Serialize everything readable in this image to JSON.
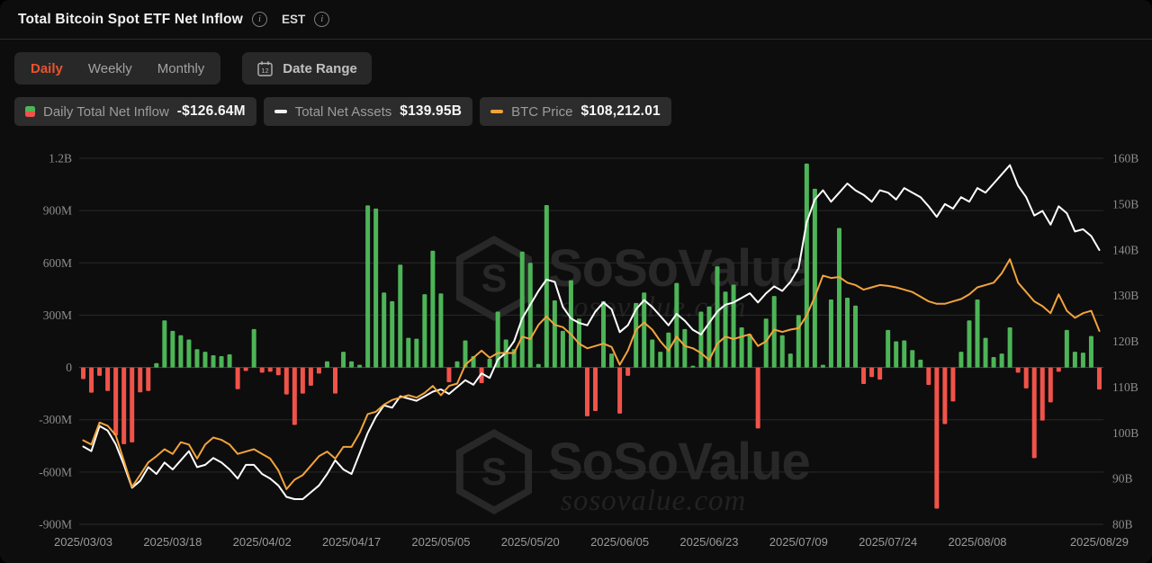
{
  "header": {
    "title": "Total Bitcoin Spot ETF Net Inflow",
    "timezone": "EST"
  },
  "controls": {
    "tabs": [
      {
        "label": "Daily",
        "active": true
      },
      {
        "label": "Weekly",
        "active": false
      },
      {
        "label": "Monthly",
        "active": false
      }
    ],
    "date_range_label": "Date Range",
    "calendar_day": "12"
  },
  "legend": [
    {
      "label": "Daily Total Net Inflow",
      "value": "-$126.64M",
      "icon": "green-red-bar-icon"
    },
    {
      "label": "Total Net Assets",
      "value": "$139.95B",
      "icon": "white-dash-icon"
    },
    {
      "label": "BTC Price",
      "value": "$108,212.01",
      "icon": "orange-dash-icon"
    }
  ],
  "watermark": {
    "brand": "SoSoValue",
    "domain": "sosovalue.com"
  },
  "chart_data": {
    "type": "mixed",
    "title": "Total Bitcoin Spot ETF Net Inflow",
    "dates": [
      "2025/03/03",
      "2025/03/04",
      "2025/03/05",
      "2025/03/06",
      "2025/03/07",
      "2025/03/10",
      "2025/03/11",
      "2025/03/12",
      "2025/03/13",
      "2025/03/14",
      "2025/03/17",
      "2025/03/18",
      "2025/03/19",
      "2025/03/20",
      "2025/03/21",
      "2025/03/24",
      "2025/03/25",
      "2025/03/26",
      "2025/03/27",
      "2025/03/28",
      "2025/03/31",
      "2025/04/01",
      "2025/04/02",
      "2025/04/03",
      "2025/04/04",
      "2025/04/07",
      "2025/04/08",
      "2025/04/09",
      "2025/04/10",
      "2025/04/11",
      "2025/04/14",
      "2025/04/15",
      "2025/04/16",
      "2025/04/17",
      "2025/04/21",
      "2025/04/22",
      "2025/04/23",
      "2025/04/24",
      "2025/04/25",
      "2025/04/28",
      "2025/04/29",
      "2025/04/30",
      "2025/05/01",
      "2025/05/02",
      "2025/05/05",
      "2025/05/06",
      "2025/05/07",
      "2025/05/08",
      "2025/05/09",
      "2025/05/12",
      "2025/05/13",
      "2025/05/14",
      "2025/05/15",
      "2025/05/16",
      "2025/05/19",
      "2025/05/20",
      "2025/05/21",
      "2025/05/22",
      "2025/05/23",
      "2025/05/27",
      "2025/05/28",
      "2025/05/29",
      "2025/05/30",
      "2025/06/02",
      "2025/06/03",
      "2025/06/04",
      "2025/06/05",
      "2025/06/06",
      "2025/06/09",
      "2025/06/10",
      "2025/06/11",
      "2025/06/12",
      "2025/06/13",
      "2025/06/16",
      "2025/06/17",
      "2025/06/18",
      "2025/06/20",
      "2025/06/23",
      "2025/06/24",
      "2025/06/25",
      "2025/06/26",
      "2025/06/27",
      "2025/06/30",
      "2025/07/01",
      "2025/07/02",
      "2025/07/03",
      "2025/07/07",
      "2025/07/08",
      "2025/07/09",
      "2025/07/10",
      "2025/07/11",
      "2025/07/14",
      "2025/07/15",
      "2025/07/16",
      "2025/07/17",
      "2025/07/18",
      "2025/07/21",
      "2025/07/22",
      "2025/07/23",
      "2025/07/24",
      "2025/07/25",
      "2025/07/28",
      "2025/07/29",
      "2025/07/30",
      "2025/07/31",
      "2025/08/01",
      "2025/08/04",
      "2025/08/05",
      "2025/08/06",
      "2025/08/07",
      "2025/08/08",
      "2025/08/11",
      "2025/08/12",
      "2025/08/13",
      "2025/08/14",
      "2025/08/15",
      "2025/08/18",
      "2025/08/19",
      "2025/08/20",
      "2025/08/21",
      "2025/08/22",
      "2025/08/25",
      "2025/08/26",
      "2025/08/27",
      "2025/08/28",
      "2025/08/29"
    ],
    "series": [
      {
        "name": "Daily Total Net Inflow",
        "type": "bar",
        "unit": "M USD",
        "axis": "left",
        "values": [
          -67,
          -145,
          -48,
          -135,
          -390,
          -440,
          -430,
          -143,
          -135,
          25,
          270,
          210,
          185,
          160,
          105,
          90,
          70,
          65,
          75,
          -125,
          -20,
          220,
          -30,
          -25,
          -45,
          -155,
          -330,
          -150,
          -105,
          -35,
          35,
          -150,
          90,
          35,
          15,
          930,
          912,
          430,
          380,
          590,
          170,
          165,
          420,
          670,
          425,
          -85,
          35,
          155,
          65,
          -90,
          50,
          320,
          160,
          105,
          665,
          600,
          20,
          932,
          385,
          210,
          500,
          280,
          -280,
          -250,
          380,
          80,
          -265,
          -48,
          370,
          430,
          160,
          90,
          200,
          485,
          220,
          10,
          320,
          350,
          580,
          435,
          475,
          230,
          190,
          -350,
          280,
          410,
          185,
          80,
          300,
          1170,
          1025,
          15,
          390,
          800,
          400,
          355,
          -95,
          -55,
          -70,
          215,
          150,
          155,
          100,
          45,
          -100,
          -810,
          -325,
          -195,
          90,
          270,
          390,
          170,
          60,
          80,
          230,
          -30,
          -120,
          -520,
          -305,
          -200,
          -25,
          215,
          90,
          85,
          180,
          -126.64
        ]
      },
      {
        "name": "Total Net Assets",
        "type": "line",
        "unit": "B USD",
        "axis": "right",
        "values": [
          97.0,
          96.0,
          101.5,
          100.5,
          97.5,
          93.0,
          88.0,
          89.5,
          92.5,
          91.0,
          93.5,
          92.0,
          94.0,
          96.0,
          92.5,
          93.0,
          94.5,
          93.5,
          92.0,
          90.0,
          93.0,
          93.0,
          91.0,
          90.0,
          88.5,
          86.0,
          85.5,
          85.5,
          87.0,
          88.5,
          91.0,
          94.0,
          92.0,
          91.0,
          95.5,
          100.0,
          103.5,
          106.0,
          105.5,
          108.0,
          107.5,
          107.0,
          108.0,
          109.0,
          109.5,
          108.5,
          110.0,
          111.5,
          110.5,
          113.0,
          112.0,
          116.0,
          117.5,
          120.0,
          125.0,
          128.0,
          131.0,
          133.5,
          133.0,
          127.5,
          125.0,
          124.0,
          123.5,
          126.5,
          128.5,
          127.0,
          122.0,
          123.5,
          127.0,
          129.0,
          127.5,
          125.5,
          123.5,
          126.0,
          124.5,
          122.5,
          121.5,
          124.0,
          126.5,
          128.0,
          128.5,
          129.5,
          130.5,
          128.5,
          130.5,
          132.0,
          131.0,
          133.0,
          136.0,
          146.0,
          151.0,
          153.0,
          150.5,
          152.5,
          154.5,
          153.0,
          152.0,
          150.5,
          153.0,
          152.5,
          151.0,
          153.5,
          152.5,
          151.5,
          149.5,
          147.2,
          150.0,
          149.0,
          151.5,
          150.5,
          153.5,
          152.5,
          154.5,
          156.5,
          158.5,
          154.0,
          151.5,
          147.5,
          148.5,
          145.5,
          149.5,
          148.0,
          144.0,
          144.5,
          143.0,
          139.95
        ]
      },
      {
        "name": "BTC Price",
        "type": "line",
        "unit": "USD",
        "axis": "hidden",
        "values": [
          84900,
          84000,
          88700,
          88000,
          86000,
          80500,
          75000,
          77500,
          80200,
          81500,
          83000,
          82000,
          84500,
          84000,
          81000,
          84000,
          85500,
          85000,
          84000,
          82000,
          82500,
          83000,
          82000,
          81000,
          78500,
          74500,
          76500,
          77500,
          79500,
          81500,
          82500,
          81000,
          83500,
          83500,
          86500,
          90500,
          91000,
          92500,
          93500,
          94000,
          94500,
          94000,
          95000,
          96500,
          94500,
          96500,
          97000,
          101000,
          102500,
          104000,
          102500,
          103500,
          103500,
          103500,
          107000,
          106500,
          109500,
          111300,
          109500,
          109000,
          107500,
          105500,
          104500,
          105000,
          105500,
          104800,
          101000,
          104000,
          108500,
          110000,
          108500,
          106000,
          104000,
          107000,
          105000,
          104500,
          103500,
          102000,
          105500,
          107000,
          106500,
          107000,
          107500,
          105000,
          106000,
          108500,
          108000,
          108500,
          108800,
          111500,
          115500,
          120000,
          119500,
          119700,
          118500,
          118000,
          117000,
          117500,
          118000,
          117800,
          117500,
          117000,
          116500,
          115500,
          114500,
          114000,
          114000,
          114500,
          115000,
          116000,
          117500,
          118000,
          118500,
          120500,
          123500,
          118500,
          116500,
          114500,
          113500,
          112000,
          116000,
          112500,
          111000,
          112000,
          112500,
          108212
        ]
      }
    ],
    "left_axis": {
      "min": -900,
      "max": 1200,
      "unit": "USD",
      "ticks": [
        {
          "v": 1200,
          "label": "1.2B"
        },
        {
          "v": 900,
          "label": "900M"
        },
        {
          "v": 600,
          "label": "600M"
        },
        {
          "v": 300,
          "label": "300M"
        },
        {
          "v": 0,
          "label": "0"
        },
        {
          "v": -300,
          "label": "-300M"
        },
        {
          "v": -600,
          "label": "-600M"
        },
        {
          "v": -900,
          "label": "-900M"
        }
      ]
    },
    "right_axis": {
      "min": 80,
      "max": 160,
      "unit": "B USD",
      "labels": [
        "160B",
        "150B",
        "140B",
        "130B",
        "120B",
        "110B",
        "100B",
        "90B",
        "80B"
      ]
    },
    "btc_axis": {
      "min": 67000,
      "max": 145000,
      "hidden": true
    },
    "x_axis": {
      "tick_indices": [
        0,
        11,
        22,
        33,
        44,
        55,
        66,
        77,
        88,
        99,
        110,
        125
      ],
      "labels": [
        "2025/03/03",
        "2025/03/18",
        "2025/04/02",
        "2025/04/17",
        "2025/05/05",
        "2025/05/20",
        "2025/06/05",
        "2025/06/23",
        "2025/07/09",
        "2025/07/24",
        "2025/08/08",
        "2025/08/29"
      ]
    },
    "colors": {
      "positive": "#4db457",
      "negative": "#f0534a",
      "net_assets": "#ffffff",
      "btc": "#f2a33c",
      "grid": "#2a2a2a",
      "zero_line": "#4a4a4a",
      "axis_text": "#8d8d8d",
      "accent": "#e8542e"
    },
    "grid": true,
    "legend_position": "top-left"
  }
}
